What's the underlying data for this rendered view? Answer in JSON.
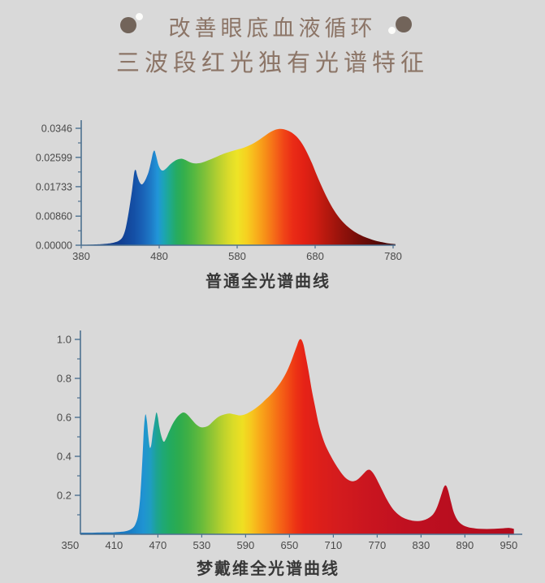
{
  "page": {
    "background": "#d9d9d9"
  },
  "header": {
    "title": "改善眼底血液循环",
    "subtitle": "三波段红光独有光谱特征",
    "text_color": "#8c7567",
    "ornament": {
      "dot_color": "#72645a",
      "spark_color": "#fcfcfa"
    }
  },
  "chart_data": [
    {
      "id": "ordinary",
      "type": "area",
      "title": "普通全光谱曲线",
      "xlabel": "",
      "ylabel": "",
      "x_range": [
        380,
        783
      ],
      "y_range": [
        0,
        0.0346
      ],
      "grid": false,
      "legend": "none",
      "axis_color": "#4d7190",
      "label_color": "#4a4a4a",
      "x_ticks": [
        380,
        480,
        580,
        680,
        780
      ],
      "y_ticks": [
        {
          "value": 0.0,
          "label": "0.00000"
        },
        {
          "value": 0.0086,
          "label": "0.00860"
        },
        {
          "value": 0.01733,
          "label": "0.01733"
        },
        {
          "value": 0.02599,
          "label": "0.02599"
        },
        {
          "value": 0.0346,
          "label": "0.0346"
        }
      ],
      "points": [
        [
          380,
          0.0001
        ],
        [
          395,
          0.0002
        ],
        [
          405,
          0.0003
        ],
        [
          415,
          0.0005
        ],
        [
          422,
          0.0008
        ],
        [
          428,
          0.0013
        ],
        [
          433,
          0.0024
        ],
        [
          437,
          0.005
        ],
        [
          441,
          0.01
        ],
        [
          445,
          0.016
        ],
        [
          448,
          0.0215
        ],
        [
          450,
          0.0222
        ],
        [
          452,
          0.0205
        ],
        [
          455,
          0.0186
        ],
        [
          458,
          0.018
        ],
        [
          461,
          0.0188
        ],
        [
          464,
          0.0202
        ],
        [
          467,
          0.0222
        ],
        [
          470,
          0.0252
        ],
        [
          472,
          0.0273
        ],
        [
          474,
          0.028
        ],
        [
          476,
          0.0265
        ],
        [
          479,
          0.0238
        ],
        [
          482,
          0.0224
        ],
        [
          485,
          0.0221
        ],
        [
          489,
          0.0227
        ],
        [
          494,
          0.0239
        ],
        [
          499,
          0.0248
        ],
        [
          504,
          0.0254
        ],
        [
          509,
          0.0256
        ],
        [
          514,
          0.0252
        ],
        [
          520,
          0.0245
        ],
        [
          526,
          0.0242
        ],
        [
          532,
          0.0243
        ],
        [
          538,
          0.0247
        ],
        [
          546,
          0.0254
        ],
        [
          554,
          0.0262
        ],
        [
          562,
          0.027
        ],
        [
          571,
          0.0277
        ],
        [
          580,
          0.0283
        ],
        [
          589,
          0.0289
        ],
        [
          598,
          0.0298
        ],
        [
          607,
          0.031
        ],
        [
          615,
          0.0323
        ],
        [
          622,
          0.0334
        ],
        [
          628,
          0.0341
        ],
        [
          634,
          0.0344
        ],
        [
          640,
          0.0343
        ],
        [
          646,
          0.0338
        ],
        [
          652,
          0.033
        ],
        [
          658,
          0.0317
        ],
        [
          664,
          0.0298
        ],
        [
          670,
          0.0272
        ],
        [
          676,
          0.0242
        ],
        [
          682,
          0.0208
        ],
        [
          689,
          0.0171
        ],
        [
          696,
          0.0137
        ],
        [
          703,
          0.0108
        ],
        [
          710,
          0.0084
        ],
        [
          718,
          0.0063
        ],
        [
          726,
          0.0047
        ],
        [
          734,
          0.0035
        ],
        [
          742,
          0.0026
        ],
        [
          750,
          0.0019
        ],
        [
          758,
          0.0013
        ],
        [
          766,
          0.0009
        ],
        [
          772,
          0.0006
        ],
        [
          778,
          0.0004
        ],
        [
          783,
          0.0003
        ]
      ],
      "gradient_stops": [
        [
          380,
          "#14367e"
        ],
        [
          430,
          "#123f92"
        ],
        [
          448,
          "#1450a6"
        ],
        [
          460,
          "#1a64b8"
        ],
        [
          470,
          "#1e7cc8"
        ],
        [
          478,
          "#2195d8"
        ],
        [
          486,
          "#1ca4b4"
        ],
        [
          494,
          "#1faa8a"
        ],
        [
          502,
          "#25ab62"
        ],
        [
          512,
          "#35af4b"
        ],
        [
          525,
          "#56b840"
        ],
        [
          540,
          "#84c238"
        ],
        [
          555,
          "#b4cf30"
        ],
        [
          568,
          "#d8da2b"
        ],
        [
          580,
          "#eee426"
        ],
        [
          592,
          "#f6d120"
        ],
        [
          604,
          "#f8b11c"
        ],
        [
          616,
          "#f78f18"
        ],
        [
          628,
          "#f56a18"
        ],
        [
          640,
          "#f04417"
        ],
        [
          652,
          "#ea2b16"
        ],
        [
          665,
          "#e22114"
        ],
        [
          680,
          "#d01d12"
        ],
        [
          695,
          "#b5180e"
        ],
        [
          715,
          "#92120b"
        ],
        [
          740,
          "#6e0c08"
        ],
        [
          760,
          "#550907"
        ],
        [
          783,
          "#3c0605"
        ]
      ]
    },
    {
      "id": "mengdaiwei",
      "type": "area",
      "title": "梦戴维全光谱曲线",
      "xlabel": "",
      "ylabel": "",
      "x_range": [
        350,
        963
      ],
      "y_range": [
        0,
        1.0
      ],
      "grid": false,
      "legend": "none",
      "axis_color": "#4d7190",
      "label_color": "#4a4a4a",
      "x_ticks": [
        350,
        410,
        470,
        530,
        590,
        650,
        710,
        770,
        830,
        890,
        950
      ],
      "y_ticks": [
        {
          "value": 0.2,
          "label": "0.2"
        },
        {
          "value": 0.4,
          "label": "0.4"
        },
        {
          "value": 0.6,
          "label": "0.6"
        },
        {
          "value": 0.8,
          "label": "0.8"
        },
        {
          "value": 1.0,
          "label": "1.0"
        }
      ],
      "points": [
        [
          364,
          0.008
        ],
        [
          380,
          0.008
        ],
        [
          395,
          0.009
        ],
        [
          410,
          0.01
        ],
        [
          420,
          0.013
        ],
        [
          428,
          0.018
        ],
        [
          434,
          0.028
        ],
        [
          439,
          0.05
        ],
        [
          443,
          0.1
        ],
        [
          446,
          0.2
        ],
        [
          449,
          0.4
        ],
        [
          451,
          0.55
        ],
        [
          453,
          0.615
        ],
        [
          455,
          0.58
        ],
        [
          457,
          0.5
        ],
        [
          459,
          0.445
        ],
        [
          461,
          0.46
        ],
        [
          463,
          0.52
        ],
        [
          466,
          0.59
        ],
        [
          468,
          0.625
        ],
        [
          470,
          0.6
        ],
        [
          472,
          0.55
        ],
        [
          475,
          0.5
        ],
        [
          478,
          0.475
        ],
        [
          481,
          0.49
        ],
        [
          485,
          0.525
        ],
        [
          490,
          0.565
        ],
        [
          495,
          0.595
        ],
        [
          500,
          0.615
        ],
        [
          505,
          0.625
        ],
        [
          510,
          0.615
        ],
        [
          516,
          0.59
        ],
        [
          522,
          0.565
        ],
        [
          528,
          0.55
        ],
        [
          534,
          0.55
        ],
        [
          540,
          0.56
        ],
        [
          547,
          0.585
        ],
        [
          554,
          0.605
        ],
        [
          561,
          0.615
        ],
        [
          568,
          0.62
        ],
        [
          575,
          0.615
        ],
        [
          582,
          0.61
        ],
        [
          589,
          0.615
        ],
        [
          596,
          0.628
        ],
        [
          603,
          0.645
        ],
        [
          610,
          0.665
        ],
        [
          617,
          0.69
        ],
        [
          624,
          0.715
        ],
        [
          631,
          0.745
        ],
        [
          638,
          0.78
        ],
        [
          645,
          0.825
        ],
        [
          651,
          0.875
        ],
        [
          656,
          0.925
        ],
        [
          660,
          0.965
        ],
        [
          663,
          0.995
        ],
        [
          666,
          1.0
        ],
        [
          669,
          0.975
        ],
        [
          672,
          0.92
        ],
        [
          676,
          0.84
        ],
        [
          680,
          0.75
        ],
        [
          685,
          0.655
        ],
        [
          690,
          0.565
        ],
        [
          695,
          0.5
        ],
        [
          700,
          0.45
        ],
        [
          706,
          0.405
        ],
        [
          712,
          0.365
        ],
        [
          718,
          0.33
        ],
        [
          724,
          0.3
        ],
        [
          730,
          0.28
        ],
        [
          736,
          0.272
        ],
        [
          742,
          0.278
        ],
        [
          748,
          0.298
        ],
        [
          753,
          0.318
        ],
        [
          757,
          0.33
        ],
        [
          761,
          0.328
        ],
        [
          766,
          0.305
        ],
        [
          771,
          0.27
        ],
        [
          777,
          0.225
        ],
        [
          783,
          0.18
        ],
        [
          789,
          0.143
        ],
        [
          795,
          0.115
        ],
        [
          802,
          0.093
        ],
        [
          810,
          0.078
        ],
        [
          818,
          0.07
        ],
        [
          826,
          0.068
        ],
        [
          834,
          0.073
        ],
        [
          841,
          0.085
        ],
        [
          847,
          0.105
        ],
        [
          852,
          0.14
        ],
        [
          857,
          0.195
        ],
        [
          861,
          0.24
        ],
        [
          864,
          0.25
        ],
        [
          867,
          0.225
        ],
        [
          871,
          0.165
        ],
        [
          875,
          0.11
        ],
        [
          880,
          0.072
        ],
        [
          886,
          0.05
        ],
        [
          893,
          0.038
        ],
        [
          900,
          0.032
        ],
        [
          910,
          0.028
        ],
        [
          920,
          0.027
        ],
        [
          930,
          0.028
        ],
        [
          940,
          0.03
        ],
        [
          950,
          0.033
        ],
        [
          957,
          0.028
        ]
      ],
      "gradient_stops": [
        [
          364,
          "#1668b0"
        ],
        [
          430,
          "#187bc4"
        ],
        [
          450,
          "#1f93d2"
        ],
        [
          460,
          "#1f9dc0"
        ],
        [
          468,
          "#1da394"
        ],
        [
          476,
          "#1ea878"
        ],
        [
          486,
          "#22aa60"
        ],
        [
          498,
          "#2cab4f"
        ],
        [
          512,
          "#41b044"
        ],
        [
          528,
          "#63ba3c"
        ],
        [
          544,
          "#90c534"
        ],
        [
          560,
          "#bdd22c"
        ],
        [
          574,
          "#dcdc27"
        ],
        [
          586,
          "#efdf22"
        ],
        [
          598,
          "#f6c71e"
        ],
        [
          610,
          "#f8a81a"
        ],
        [
          622,
          "#f78c17"
        ],
        [
          634,
          "#f66d16"
        ],
        [
          646,
          "#f25115"
        ],
        [
          658,
          "#ed3414"
        ],
        [
          670,
          "#e62317"
        ],
        [
          690,
          "#dd1f1a"
        ],
        [
          720,
          "#d31b1e"
        ],
        [
          760,
          "#c9151f"
        ],
        [
          810,
          "#c01020"
        ],
        [
          870,
          "#b90e1f"
        ],
        [
          957,
          "#b20c1d"
        ]
      ]
    }
  ]
}
